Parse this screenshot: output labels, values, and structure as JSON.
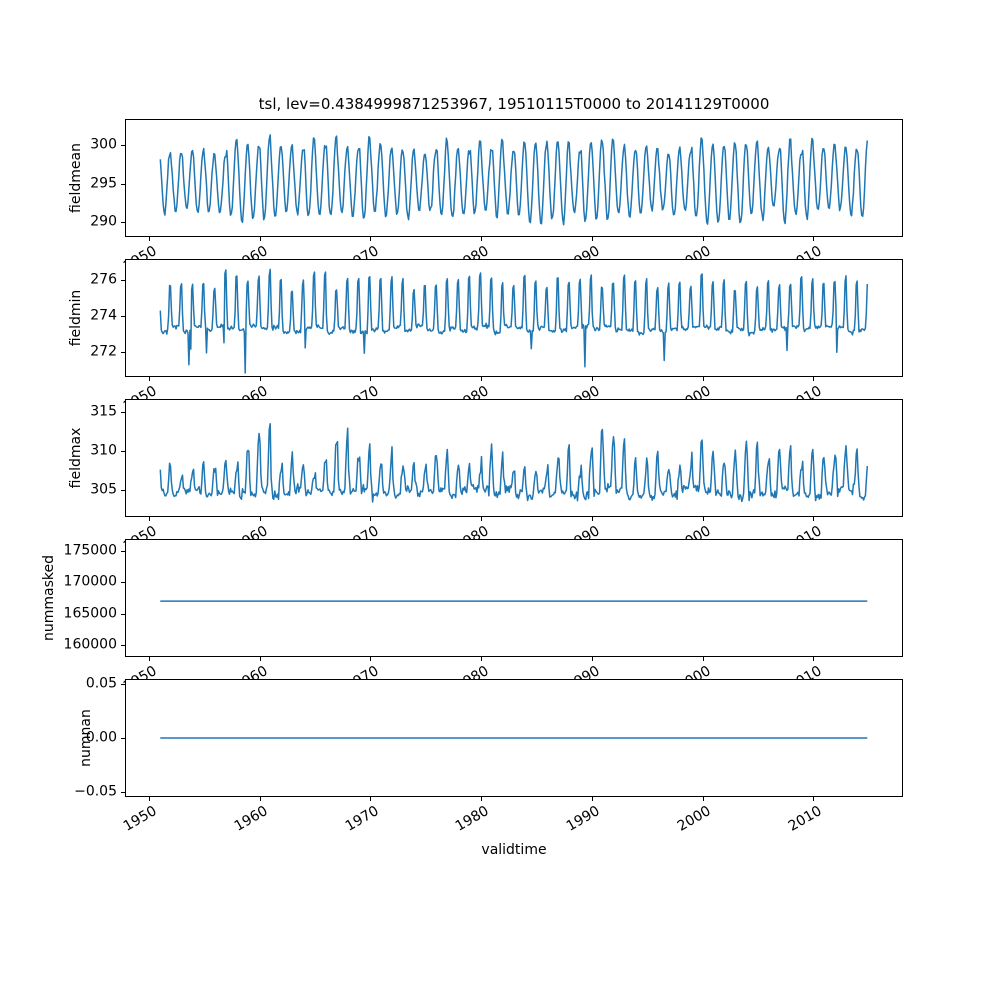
{
  "chart_data": {
    "type": "line",
    "title": "tsl, lev=0.4384999871253967, 19510115T0000 to 20141129T0000",
    "xlabel": "validtime",
    "line_color": "#1f77b4",
    "axis_color": "#000000",
    "background_color": "#ffffff",
    "x_start_decimal_year": 1951.04,
    "x_end_decimal_year": 2014.91,
    "points_per_year": 12,
    "xlim": [
      1947.85,
      2018.1
    ],
    "x_ticks": [
      {
        "v": 1950,
        "label": "1950"
      },
      {
        "v": 1960,
        "label": "1960"
      },
      {
        "v": 1970,
        "label": "1970"
      },
      {
        "v": 1980,
        "label": "1980"
      },
      {
        "v": 1990,
        "label": "1990"
      },
      {
        "v": 2000,
        "label": "2000"
      },
      {
        "v": 2010,
        "label": "2010"
      }
    ],
    "x_tick_rotation_deg": 30,
    "grid": false,
    "legend": "none",
    "panels": [
      {
        "ylabel": "fieldmean",
        "ylim": [
          288.05,
          303.38
        ],
        "y_ticks": [
          {
            "v": 300,
            "label": "300"
          },
          {
            "v": 295,
            "label": "295"
          },
          {
            "v": 290,
            "label": "290"
          }
        ],
        "series": {
          "name": "fieldmean",
          "kind": "seasonal",
          "seed": 11,
          "mean": 295.4,
          "mean_jitter": 1.0,
          "amplitude": 4.5,
          "amplitude_jitter": 0.9,
          "phase": 0.08,
          "noise": 0.33,
          "approx_min": 289.0,
          "approx_max": 302.6,
          "approx_mean": 295.4,
          "description": "annual oscillation between about 290 and 300 K, 1951-2014"
        }
      },
      {
        "ylabel": "fieldmin",
        "ylim": [
          270.61,
          277.17
        ],
        "y_ticks": [
          {
            "v": 276,
            "label": "276"
          },
          {
            "v": 274,
            "label": "274"
          },
          {
            "v": 272,
            "label": "272"
          }
        ],
        "series": {
          "name": "fieldmin",
          "kind": "peaks",
          "seed": 22,
          "base": 273.25,
          "base_jitter": 0.4,
          "peak_height": 2.9,
          "peak_jitter": 0.5,
          "sharpness": 3,
          "phase": 0.08,
          "noise": 0.12,
          "dip_prob": 0.012,
          "dip_depth": 1.8,
          "approx_min": 271.0,
          "approx_max": 276.5,
          "approx_base": 273.3,
          "description": "baseline near 273 with narrow annual peaks to ~276 and occasional dips to ~271"
        }
      },
      {
        "ylabel": "fieldmax",
        "ylim": [
          301.53,
          316.66
        ],
        "y_ticks": [
          {
            "v": 315,
            "label": "315"
          },
          {
            "v": 310,
            "label": "310"
          },
          {
            "v": 305,
            "label": "305"
          }
        ],
        "series": {
          "name": "fieldmax",
          "kind": "noisy-seasonal",
          "seed": 33,
          "base": 304.6,
          "base_jitter": 1.2,
          "peak_height": 4.2,
          "peak_jitter": 2.0,
          "big_peak_prob": 0.15,
          "big_peak_boost": 3.2,
          "sharpness": 1.6,
          "phase": 0.06,
          "noise": 0.55,
          "approx_min": 302.0,
          "approx_max": 315.5,
          "approx_base": 305.0,
          "description": "noisy annual peaks varying ~308-315 over a base near 304-306"
        }
      },
      {
        "ylabel": "nummasked",
        "ylim": [
          158085,
          176915
        ],
        "y_ticks": [
          {
            "v": 175000,
            "label": "175000"
          },
          {
            "v": 170000,
            "label": "170000"
          },
          {
            "v": 165000,
            "label": "165000"
          },
          {
            "v": 160000,
            "label": "160000"
          }
        ],
        "series": {
          "name": "nummasked",
          "kind": "constant",
          "value": 167000,
          "description": "constant line at ~167000"
        }
      },
      {
        "ylabel": "numnan",
        "ylim": [
          -0.055,
          0.055
        ],
        "y_ticks": [
          {
            "v": 0.05,
            "label": "0.05"
          },
          {
            "v": 0.0,
            "label": "0.00"
          },
          {
            "v": -0.05,
            "label": "−0.05"
          }
        ],
        "series": {
          "name": "numnan",
          "kind": "constant",
          "value": 0,
          "description": "constant line at 0.00"
        }
      }
    ],
    "series_representation": "procedural approximation of dense monthly series read from the plot"
  }
}
